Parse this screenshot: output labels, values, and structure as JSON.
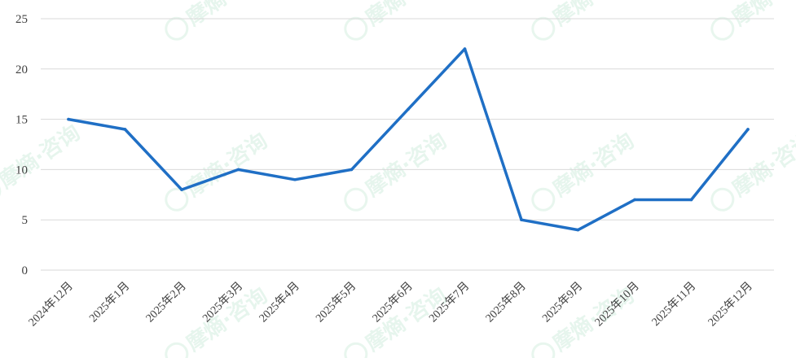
{
  "chart_data": {
    "type": "line",
    "title": "",
    "xlabel": "",
    "ylabel": "",
    "categories": [
      "2024年12月",
      "2025年1月",
      "2025年2月",
      "2025年3月",
      "2025年4月",
      "2025年5月",
      "2025年6月",
      "2025年7月",
      "2025年8月",
      "2025年9月",
      "2025年10月",
      "2025年11月",
      "2025年12月"
    ],
    "series": [
      {
        "values": [
          15,
          14,
          8,
          10,
          9,
          10,
          16,
          22,
          5,
          4,
          7,
          7,
          14
        ],
        "color": "#1f6fc5"
      }
    ],
    "ylim": [
      0,
      25
    ],
    "yticks": [
      "0",
      "5",
      "10",
      "15",
      "20",
      "25"
    ],
    "grid": true,
    "legend": "none"
  },
  "watermark": {
    "text": "摩熵·咨询"
  }
}
